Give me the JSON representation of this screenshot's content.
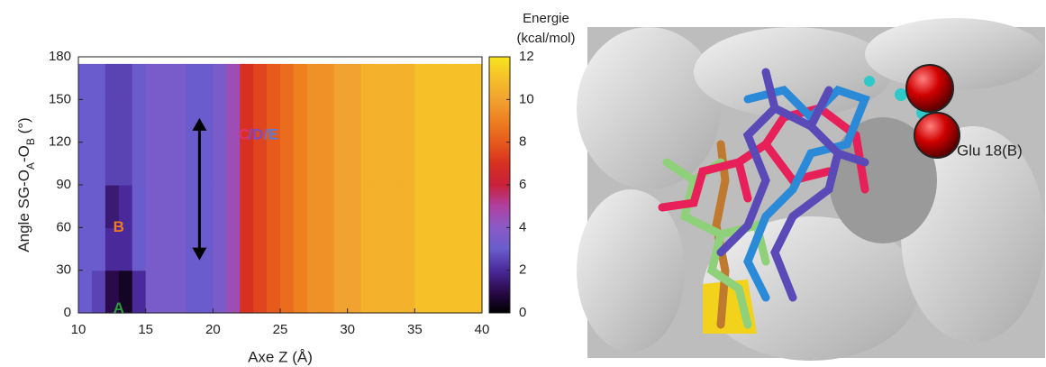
{
  "chart_data": {
    "type": "heatmap",
    "xlabel": "Axe Z (Å)",
    "ylabel_parts": [
      "Angle SG-O",
      "A",
      "-O",
      "B",
      " (°)"
    ],
    "colorbar_title": [
      "Energie",
      "(kcal/mol)"
    ],
    "xlim": [
      10,
      40
    ],
    "xticks": [
      10,
      15,
      20,
      25,
      30,
      35,
      40
    ],
    "ylim": [
      0,
      180
    ],
    "yticks": [
      0,
      30,
      60,
      90,
      120,
      150,
      180
    ],
    "clim": [
      0,
      12
    ],
    "cticks": [
      0,
      2,
      4,
      6,
      8,
      10,
      12
    ],
    "colormap": [
      [
        0,
        "#000000"
      ],
      [
        1,
        "#2a0a4a"
      ],
      [
        2,
        "#4a2a9a"
      ],
      [
        3,
        "#6a5ccc"
      ],
      [
        4,
        "#8a5ac8"
      ],
      [
        5,
        "#b040a0"
      ],
      [
        6,
        "#c8203a"
      ],
      [
        7,
        "#d83020"
      ],
      [
        8,
        "#e65a1c"
      ],
      [
        9,
        "#ee8020"
      ],
      [
        10,
        "#f2a230"
      ],
      [
        11,
        "#f5c028"
      ],
      [
        12,
        "#f7e51e"
      ]
    ],
    "xbins": [
      10,
      11,
      12,
      13,
      14,
      15,
      16,
      17,
      18,
      19,
      20,
      21,
      22,
      23,
      24,
      25,
      26,
      27,
      28,
      29,
      30,
      31,
      32,
      33,
      34,
      35,
      36,
      37,
      38,
      39,
      40
    ],
    "ybins": [
      0,
      30,
      60,
      90,
      120,
      150,
      175
    ],
    "z": [
      [
        3,
        2.5,
        1,
        0.5,
        2,
        3.5,
        3.5,
        3.5,
        3,
        3,
        3.5,
        4.5,
        7,
        7.5,
        8,
        8.5,
        9,
        9.5,
        9.5,
        10,
        10,
        10.5,
        10.5,
        10.5,
        10.5,
        11,
        11,
        11,
        11,
        11
      ],
      [
        3,
        3,
        2,
        2,
        3,
        3.5,
        3.5,
        3.5,
        3,
        3,
        3.5,
        4.5,
        7,
        7.5,
        8,
        8.5,
        9,
        9.5,
        9.5,
        10,
        10,
        10.5,
        10.5,
        10.5,
        10.5,
        11,
        11,
        11,
        11,
        11
      ],
      [
        3,
        3,
        1.5,
        2,
        3,
        3.5,
        3.5,
        3.5,
        3,
        3,
        3.5,
        4.5,
        7,
        7.5,
        8,
        8.5,
        9,
        9.5,
        9.5,
        10,
        10,
        10.5,
        10.5,
        10.5,
        10.5,
        11,
        11,
        11,
        11,
        11
      ],
      [
        3,
        3,
        2.5,
        2.5,
        3,
        3.5,
        3.5,
        3.5,
        3,
        3,
        3.5,
        4.5,
        7,
        7.5,
        8,
        8.5,
        9,
        9.5,
        9.5,
        10,
        10,
        10.5,
        10.5,
        10.5,
        10.5,
        11,
        11,
        11,
        11,
        11
      ],
      [
        3,
        3,
        2.5,
        2.5,
        3,
        3.5,
        3.5,
        3.5,
        3,
        3,
        3.5,
        4.5,
        7,
        7.5,
        8,
        8.5,
        9,
        9.5,
        9.5,
        10,
        10,
        10.5,
        10.5,
        10.5,
        10.5,
        11,
        11,
        11,
        11,
        11
      ],
      [
        3,
        3,
        2.5,
        2.5,
        3,
        3.5,
        3.5,
        3.5,
        3,
        3,
        3.5,
        4.5,
        7,
        7.5,
        8,
        8.5,
        9,
        9.5,
        9.5,
        10,
        10,
        10.5,
        10.5,
        10.5,
        10.5,
        11,
        11,
        11,
        11,
        11
      ]
    ],
    "annotations": [
      {
        "text": "A",
        "x": 13,
        "y": 3,
        "color": "#2a9d3a"
      },
      {
        "text": "B",
        "x": 13,
        "y": 60,
        "color": "#f07a20"
      },
      {
        "text": "C",
        "x": 21.9,
        "y": 125,
        "color": "#e0306a"
      },
      {
        "text": "/D",
        "x": 22.6,
        "y": 125,
        "color": "#7a4ad0"
      },
      {
        "text": "/E",
        "x": 23.8,
        "y": 125,
        "color": "#5a7ad8"
      }
    ],
    "arrow": {
      "x": 19,
      "y": [
        37,
        137
      ]
    }
  },
  "image": {
    "label": "Glu 18(B)"
  }
}
